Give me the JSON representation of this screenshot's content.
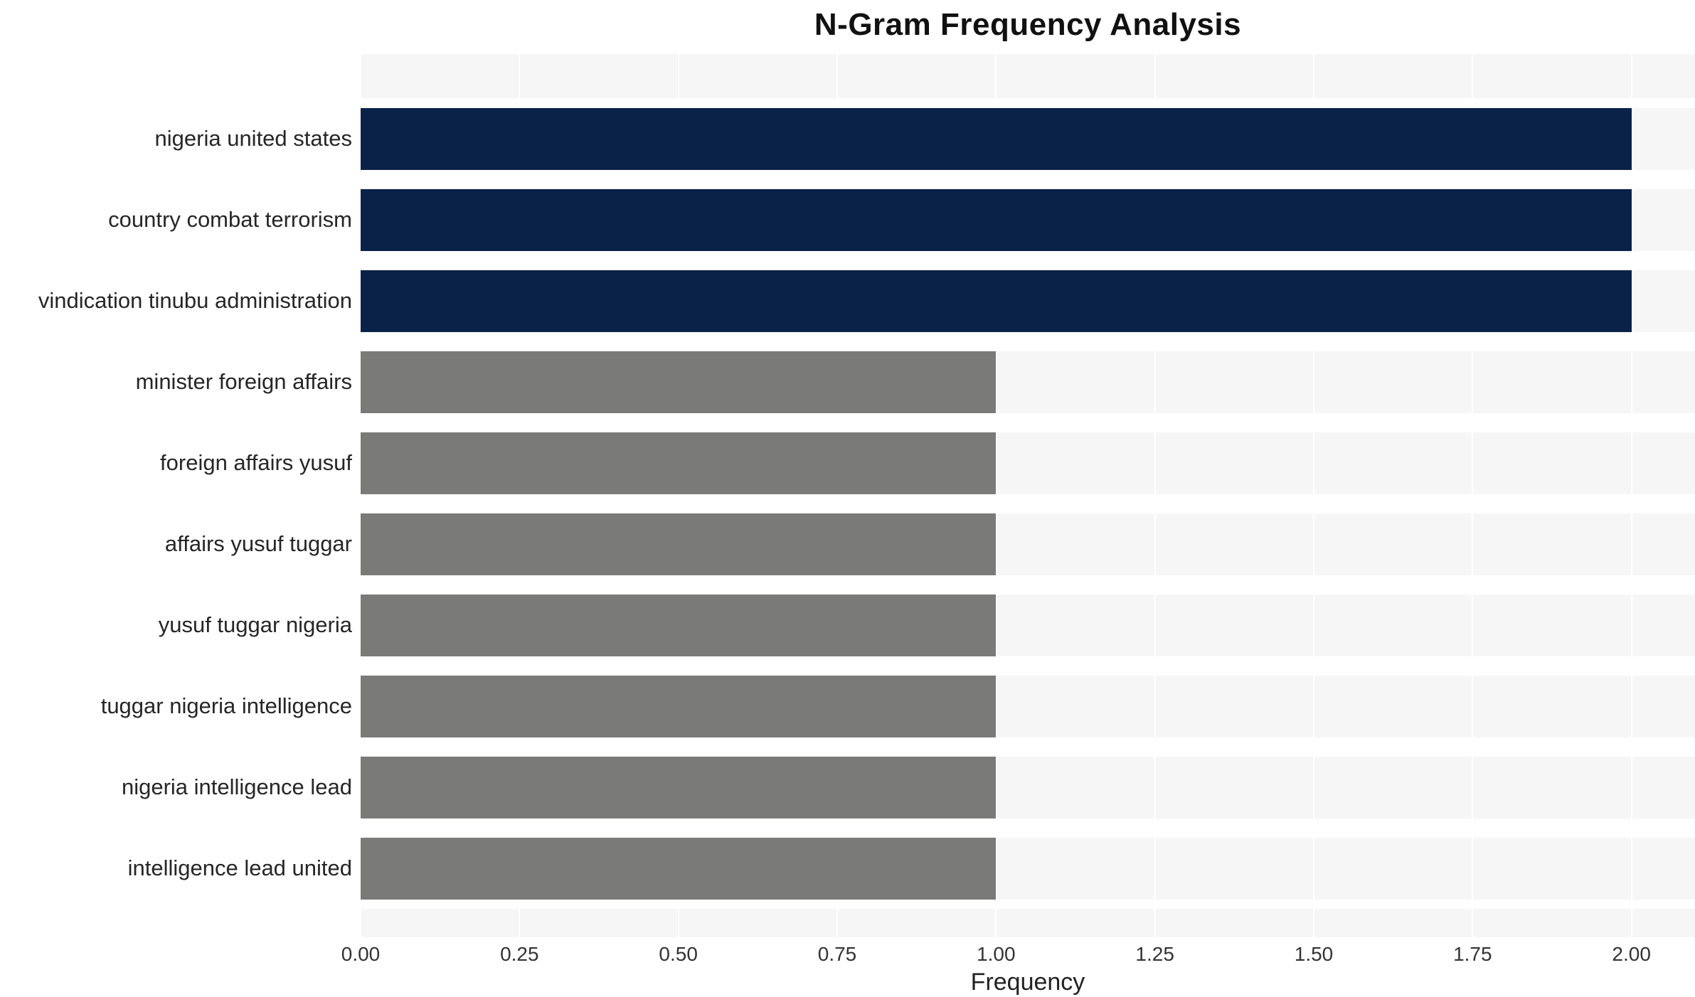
{
  "chart_data": {
    "type": "bar",
    "orientation": "horizontal",
    "title": "N-Gram Frequency Analysis",
    "xlabel": "Frequency",
    "ylabel": "",
    "categories": [
      "nigeria united states",
      "country combat terrorism",
      "vindication tinubu administration",
      "minister foreign affairs",
      "foreign affairs yusuf",
      "affairs yusuf tuggar",
      "yusuf tuggar nigeria",
      "tuggar nigeria intelligence",
      "nigeria intelligence lead",
      "intelligence lead united"
    ],
    "values": [
      2,
      2,
      2,
      1,
      1,
      1,
      1,
      1,
      1,
      1
    ],
    "colors": [
      "#0a2247",
      "#0a2247",
      "#0a2247",
      "#7a7a78",
      "#7a7a78",
      "#7a7a78",
      "#7a7a78",
      "#7a7a78",
      "#7a7a78",
      "#7a7a78"
    ],
    "xticks": [
      0,
      0.25,
      0.5,
      0.75,
      1,
      1.25,
      1.5,
      1.75,
      2
    ],
    "xtick_labels": [
      "0.00",
      "0.25",
      "0.50",
      "0.75",
      "1.00",
      "1.25",
      "1.50",
      "1.75",
      "2.00"
    ],
    "xlim": [
      0,
      2.1
    ],
    "grid": true,
    "legend": false,
    "plot_bg_color": "#f6f6f7",
    "grid_color": "#ffffff",
    "highlight_bar_color": "#0a2247",
    "default_bar_color": "#7a7a78"
  }
}
